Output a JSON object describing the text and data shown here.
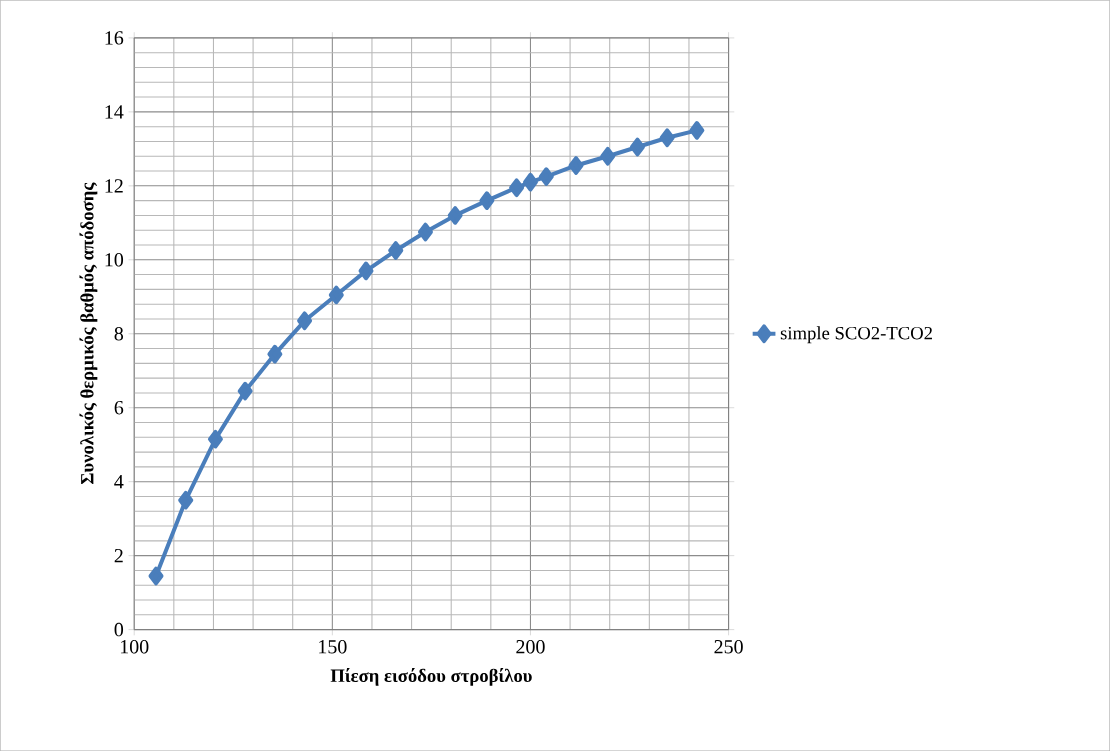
{
  "chart_data": {
    "type": "line",
    "xlabel": "Πίεση εισόδου στροβίλου",
    "ylabel": "Συνολικός θερμικός βαθμός απόδοσης",
    "x": [
      105.5,
      113,
      120.5,
      128,
      135.5,
      143,
      151,
      158.5,
      166,
      173.5,
      181,
      189,
      196.5,
      200,
      204,
      211.5,
      219.5,
      227,
      234.5,
      242
    ],
    "series": [
      {
        "name": "simple SCO2-TCO2",
        "color": "#4a7ebb",
        "values": [
          1.45,
          3.5,
          5.15,
          6.45,
          7.45,
          8.35,
          9.05,
          9.7,
          10.25,
          10.75,
          11.2,
          11.6,
          11.95,
          12.1,
          12.25,
          12.55,
          12.8,
          13.05,
          13.3,
          13.5
        ]
      }
    ],
    "xlim": [
      100,
      250
    ],
    "ylim": [
      0,
      16
    ],
    "xticks": [
      100,
      150,
      200,
      250
    ],
    "yticks": [
      0,
      2,
      4,
      6,
      8,
      10,
      12,
      14,
      16
    ],
    "grid": true,
    "legend": "right",
    "marker": "diamond",
    "line_style": "solid"
  }
}
